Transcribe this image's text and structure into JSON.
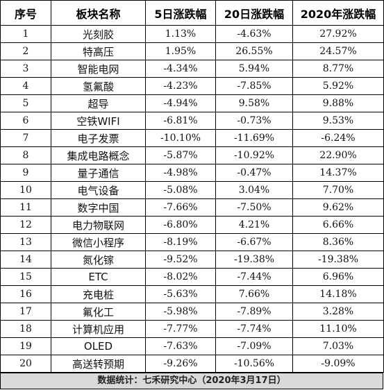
{
  "headers": [
    "序号",
    "板块名称",
    "5日涨跌幅",
    "20日涨跌幅",
    "2020年涨跌幅"
  ],
  "rows": [
    [
      "1",
      "光刻胶",
      "1.13%",
      "-4.63%",
      "27.92%"
    ],
    [
      "2",
      "特高压",
      "1.95%",
      "26.55%",
      "24.57%"
    ],
    [
      "3",
      "智能电网",
      "-4.34%",
      "5.94%",
      "8.77%"
    ],
    [
      "4",
      "氢氟酸",
      "-4.23%",
      "-7.85%",
      "5.92%"
    ],
    [
      "5",
      "超导",
      "-4.94%",
      "9.58%",
      "9.88%"
    ],
    [
      "6",
      "空铁WIFI",
      "-6.81%",
      "-0.73%",
      "9.53%"
    ],
    [
      "7",
      "电子发票",
      "-10.10%",
      "-11.69%",
      "-6.24%"
    ],
    [
      "8",
      "集成电路概念",
      "-5.87%",
      "-10.92%",
      "22.90%"
    ],
    [
      "9",
      "量子通信",
      "-4.98%",
      "-0.47%",
      "14.37%"
    ],
    [
      "10",
      "电气设备",
      "-5.08%",
      "3.04%",
      "7.70%"
    ],
    [
      "11",
      "数字中国",
      "-7.66%",
      "-7.50%",
      "9.62%"
    ],
    [
      "12",
      "电力物联网",
      "-6.80%",
      "4.21%",
      "6.66%"
    ],
    [
      "13",
      "微信小程序",
      "-8.19%",
      "-6.67%",
      "8.36%"
    ],
    [
      "14",
      "氮化镓",
      "-9.52%",
      "-19.38%",
      "-19.38%"
    ],
    [
      "15",
      "ETC",
      "-8.02%",
      "-7.44%",
      "6.96%"
    ],
    [
      "16",
      "充电桩",
      "-5.63%",
      "7.66%",
      "14.18%"
    ],
    [
      "17",
      "氟化工",
      "-5.98%",
      "-7.89%",
      "3.28%"
    ],
    [
      "18",
      "计算机应用",
      "-7.77%",
      "-7.74%",
      "11.10%"
    ],
    [
      "19",
      "OLED",
      "-7.63%",
      "-7.09%",
      "7.03%"
    ],
    [
      "20",
      "高送转预期",
      "-9.26%",
      "-10.56%",
      "-9.09%"
    ]
  ],
  "footer": "数据统计：七禾研究中心（2020年3月17日）"
}
